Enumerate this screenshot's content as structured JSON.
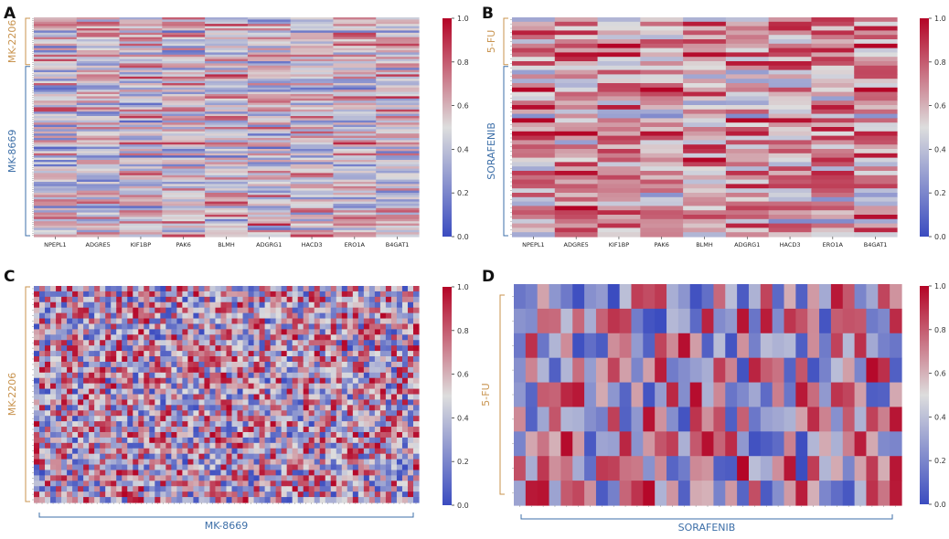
{
  "colors": {
    "mk2206": "#c8934e",
    "mk8669": "#3d6fa8",
    "fu": "#c8934e",
    "sorafenib": "#3d6fa8",
    "cmap_low": "#3b4cc0",
    "cmap_mid": "#dddddd",
    "cmap_high": "#b40426"
  },
  "chart_data": [
    {
      "type": "heatmap",
      "panel_label": "A",
      "colorbar_ticks": [
        "0.0",
        "0.2",
        "0.4",
        "0.6",
        "0.8",
        "1.0"
      ],
      "zlim": [
        0,
        1
      ],
      "columns": [
        "NPEPL1",
        "ADGRE5",
        "KIF1BP",
        "PAK6",
        "BLMH",
        "ADGRG1",
        "HACD3",
        "ERO1A",
        "B4GAT1"
      ],
      "groups": [
        {
          "name": "MK-2206",
          "rows": 22
        },
        {
          "name": "MK-8669",
          "rows": 78
        }
      ],
      "row_count": 100,
      "values_note": "cell values in [0,1]; exact per-cell values not legible at source resolution"
    },
    {
      "type": "heatmap",
      "panel_label": "B",
      "colorbar_ticks": [
        "0.0",
        "0.2",
        "0.4",
        "0.6",
        "0.8",
        "1.0"
      ],
      "zlim": [
        0,
        1
      ],
      "columns": [
        "NPEPL1",
        "ADGRE5",
        "KIF1BP",
        "PAK6",
        "BLMH",
        "ADGRG1",
        "HACD3",
        "ERO1A",
        "B4GAT1"
      ],
      "groups": [
        {
          "name": "5-FU",
          "rows": 11
        },
        {
          "name": "SORAFENIB",
          "rows": 39
        }
      ],
      "row_count": 50,
      "values_note": "cell values in [0,1]; exact per-cell values not legible at source resolution"
    },
    {
      "type": "heatmap",
      "panel_label": "C",
      "colorbar_ticks": [
        "0.0",
        "0.2",
        "0.4",
        "0.6",
        "0.8",
        "1.0"
      ],
      "zlim": [
        0,
        1
      ],
      "row_group": "MK-2206",
      "col_group": "MK-8669",
      "rows": 40,
      "cols": 70,
      "values_note": "correlation-like matrix, values in [0,1]"
    },
    {
      "type": "heatmap",
      "panel_label": "D",
      "colorbar_ticks": [
        "0.0",
        "0.2",
        "0.4",
        "0.6",
        "0.8",
        "1.0"
      ],
      "zlim": [
        0,
        1
      ],
      "row_group": "5-FU",
      "col_group": "SORAFENIB",
      "rows": 9,
      "cols": 33,
      "values_note": "correlation-like matrix, values in [0,1]"
    }
  ]
}
